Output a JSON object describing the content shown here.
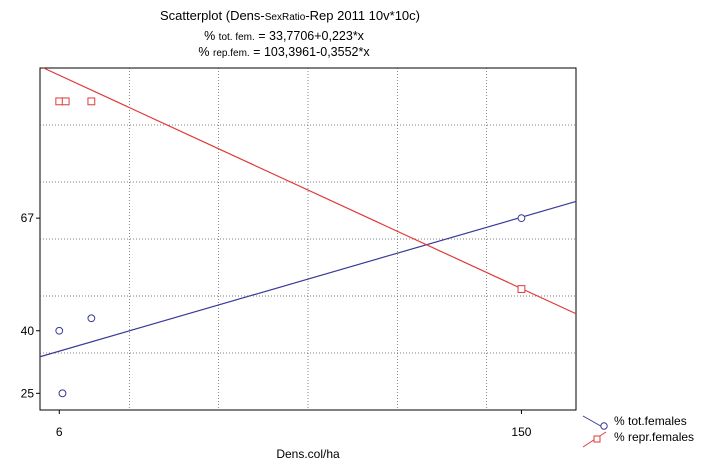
{
  "chart_data": {
    "type": "scatter",
    "title": "Scatterplot (Dens-SexRatio-Rep 2011 10v*10c)",
    "title_parts": {
      "start": "Scatterplot (Dens-",
      "small": "SexRatio",
      "end": "-Rep 2011 10v*10c)"
    },
    "equations": [
      {
        "pct": "%",
        "small": "tot. fem.",
        "rest": "= 33,7706+0,223*x"
      },
      {
        "pct": "%",
        "small": "rep.fem.",
        "rest": "= 103,3961-0,3552*x"
      }
    ],
    "xlabel": "Dens.col/ha",
    "ylabel": "",
    "xlim": [
      0,
      167
    ],
    "ylim": [
      21,
      103
    ],
    "x_ticks": [
      6,
      150
    ],
    "y_ticks": [
      25,
      40,
      67
    ],
    "grid": true,
    "legend_position": "bottom-right",
    "series": [
      {
        "name": "% tot.females",
        "color": "#3a3a9a",
        "marker": "circle",
        "x": [
          6,
          7,
          16,
          150
        ],
        "y": [
          40,
          25,
          43,
          67
        ],
        "fit": {
          "intercept": 33.7706,
          "slope": 0.223
        }
      },
      {
        "name": "% repr.females",
        "color": "#e03a3a",
        "marker": "square",
        "x": [
          6,
          8,
          16,
          150
        ],
        "y": [
          95,
          95,
          95,
          50
        ],
        "fit": {
          "intercept": 103.3961,
          "slope": -0.3552
        }
      }
    ]
  }
}
